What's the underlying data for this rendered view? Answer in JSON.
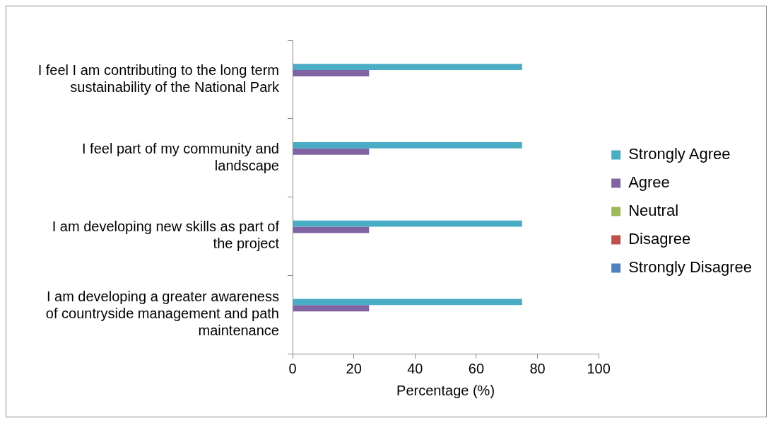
{
  "chart_data": {
    "type": "bar",
    "orientation": "horizontal",
    "xlabel": "Percentage (%)",
    "categories": [
      "I feel I am contributing to the long term sustainability of the National Park",
      "I feel part of my community and landscape",
      "I am developing new skills as part of the project",
      "I am developing a greater awareness of countryside management and path maintenance"
    ],
    "series": [
      {
        "name": "Strongly Agree",
        "color": "#4bacc6",
        "values": [
          75,
          75,
          75,
          75
        ]
      },
      {
        "name": "Agree",
        "color": "#8064a2",
        "values": [
          25,
          25,
          25,
          25
        ]
      },
      {
        "name": "Neutral",
        "color": "#9bbb59",
        "values": [
          0,
          0,
          0,
          0
        ]
      },
      {
        "name": "Disagree",
        "color": "#c0504d",
        "values": [
          0,
          0,
          0,
          0
        ]
      },
      {
        "name": "Strongly Disagree",
        "color": "#4f81bd",
        "values": [
          0,
          0,
          0,
          0
        ]
      }
    ],
    "xlim": [
      0,
      100
    ],
    "xticks": [
      0,
      20,
      40,
      60,
      80,
      100
    ],
    "grid": false,
    "legend": "right"
  }
}
